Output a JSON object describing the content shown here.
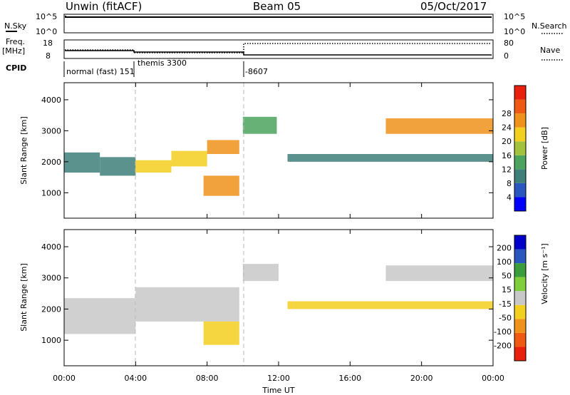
{
  "header": {
    "radar_label": "Unwin (fitACF)",
    "beam_label": "Beam 05",
    "date_label": "05/Oct/2017"
  },
  "strip": {
    "nsky_label": "N.Sky",
    "nsky_ticks": [
      "10^5",
      "10^0"
    ],
    "nsearch_label": "N.Search",
    "nsearch_ticks": [
      "10^5",
      "10^0"
    ],
    "freq_label": "Freq.",
    "freq_unit": "[MHz]",
    "freq_ticks": [
      "18",
      "8"
    ],
    "nave_label": "Nave",
    "nave_ticks": [
      "80",
      "0"
    ],
    "cpid_label": "CPID",
    "cpid_segments": [
      {
        "label": "normal (fast) 151"
      },
      {
        "label": "themis 3300"
      },
      {
        "label": "-8607"
      }
    ]
  },
  "colors": {
    "power": [
      "#0000ff",
      "#2a56c0",
      "#3f7f7a",
      "#4ca35e",
      "#a3c23c",
      "#f3cf1e",
      "#f0921a",
      "#ee5a12",
      "#e8200c"
    ],
    "velocity": [
      "#e8200c",
      "#ee5a12",
      "#f0921a",
      "#f3cf1e",
      "#c8c8c8",
      "#7fcf3a",
      "#3a9c3a",
      "#2a56c0",
      "#0000c8"
    ]
  },
  "chart_data": [
    {
      "type": "heatmap",
      "title": "",
      "xlabel": "Time UT",
      "ylabel": "Slant Range [km]",
      "xlim": [
        0,
        24
      ],
      "ylim": [
        180,
        4550
      ],
      "x_ticks": [
        "00:00",
        "04:00",
        "08:00",
        "12:00",
        "16:00",
        "20:00",
        "00:00"
      ],
      "y_ticks": [
        "1000",
        "2000",
        "3000",
        "4000"
      ],
      "colorbar_label": "Power [dB]",
      "colorbar_ticks": [
        "4",
        "8",
        "12",
        "16",
        "20",
        "24",
        "28"
      ],
      "bands": [
        {
          "t0": 0.0,
          "t1": 2.0,
          "r0": 1650,
          "r1": 2300,
          "value": 8
        },
        {
          "t0": 2.0,
          "t1": 4.0,
          "r0": 1550,
          "r1": 2150,
          "value": 10
        },
        {
          "t0": 4.0,
          "t1": 6.0,
          "r0": 1650,
          "r1": 2050,
          "value": 18
        },
        {
          "t0": 6.0,
          "t1": 8.0,
          "r0": 1850,
          "r1": 2350,
          "value": 20
        },
        {
          "t0": 8.0,
          "t1": 9.8,
          "r0": 2250,
          "r1": 2700,
          "value": 22
        },
        {
          "t0": 7.8,
          "t1": 9.8,
          "r0": 900,
          "r1": 1550,
          "value": 22
        },
        {
          "t0": 10.0,
          "t1": 11.9,
          "r0": 2900,
          "r1": 3450,
          "value": 14
        },
        {
          "t0": 12.5,
          "t1": 24.0,
          "r0": 2000,
          "r1": 2250,
          "value": 8
        },
        {
          "t0": 18.0,
          "t1": 24.0,
          "r0": 2900,
          "r1": 3400,
          "value": 22
        }
      ]
    },
    {
      "type": "heatmap",
      "title": "",
      "xlabel": "Time UT",
      "ylabel": "Slant Range [km]",
      "xlim": [
        0,
        24
      ],
      "ylim": [
        180,
        4550
      ],
      "x_ticks": [
        "00:00",
        "04:00",
        "08:00",
        "12:00",
        "16:00",
        "20:00",
        "00:00"
      ],
      "y_ticks": [
        "1000",
        "2000",
        "3000",
        "4000"
      ],
      "colorbar_label": "Velocity [m s⁻¹]",
      "colorbar_ticks": [
        "200",
        "100",
        "50",
        "15",
        "-15",
        "-50",
        "-100",
        "-200"
      ],
      "bands": [
        {
          "t0": 0.0,
          "t1": 4.0,
          "r0": 1200,
          "r1": 2350,
          "value": 0
        },
        {
          "t0": 4.0,
          "t1": 9.8,
          "r0": 1600,
          "r1": 2700,
          "value": 0
        },
        {
          "t0": 7.8,
          "t1": 9.8,
          "r0": 850,
          "r1": 1600,
          "value": -80
        },
        {
          "t0": 10.0,
          "t1": 12.0,
          "r0": 2900,
          "r1": 3450,
          "value": 0
        },
        {
          "t0": 12.5,
          "t1": 24.0,
          "r0": 2000,
          "r1": 2250,
          "value": -40
        },
        {
          "t0": 18.0,
          "t1": 24.0,
          "r0": 2900,
          "r1": 3400,
          "value": 0
        }
      ]
    }
  ]
}
